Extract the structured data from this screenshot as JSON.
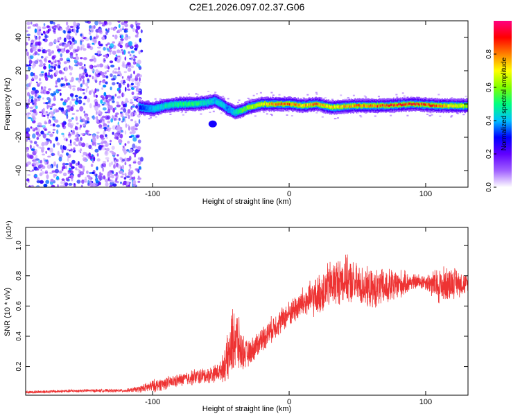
{
  "title": "C2E1.2026.097.02.37.G06",
  "chart_data": [
    {
      "type": "heatmap",
      "xlabel": "Height of straight line (km)",
      "ylabel": "Frequency (Hz)",
      "xlim": [
        -193,
        131
      ],
      "ylim": [
        -50,
        50
      ],
      "xticks": [
        -100,
        0,
        100
      ],
      "yticks": [
        -40,
        -20,
        0,
        20,
        40
      ],
      "grid": false,
      "colorbar": {
        "label": "Normalized spectral amplitude",
        "range": [
          0,
          1
        ],
        "ticks": [
          0.0,
          0.2,
          0.4,
          0.6,
          0.8
        ],
        "colormap": [
          "#ffffff",
          "#a060ff",
          "#6000ff",
          "#0000ff",
          "#00c0ff",
          "#00ff80",
          "#80ff00",
          "#ffff00",
          "#ff8000",
          "#ff0000",
          "#ff0080"
        ]
      },
      "ridge": {
        "x": [
          -110,
          -100,
          -90,
          -80,
          -70,
          -60,
          -55,
          -50,
          -45,
          -40,
          -35,
          -30,
          -20,
          -10,
          0,
          10,
          20,
          30,
          50,
          70,
          90,
          110,
          130
        ],
        "y": [
          -2,
          -3,
          -1,
          0,
          0,
          1,
          2,
          0,
          -3,
          -5,
          -4,
          -2,
          0,
          0,
          0,
          -1,
          0,
          -2,
          -1,
          -1,
          0,
          -1,
          -1
        ],
        "amplitude": [
          0.3,
          0.4,
          0.45,
          0.5,
          0.5,
          0.45,
          0.4,
          0.45,
          0.35,
          0.45,
          0.55,
          0.6,
          0.7,
          0.8,
          0.85,
          0.75,
          0.8,
          0.7,
          0.8,
          0.85,
          0.9,
          0.8,
          0.6
        ]
      },
      "noise_region_x": [
        -193,
        -108
      ]
    },
    {
      "type": "line",
      "xlabel": "Height of straight line (km)",
      "ylabel": "SNR (10 * v/v)",
      "y_multiplier": "(x10⁴)",
      "xlim": [
        -193,
        131
      ],
      "ylim": [
        0.01,
        1.12
      ],
      "xticks": [
        -100,
        0,
        100
      ],
      "yticks": [
        0.2,
        0.4,
        0.6,
        0.8,
        1.0
      ],
      "series": [
        {
          "color": "#ee3333",
          "x": [
            -193,
            -150,
            -120,
            -110,
            -100,
            -90,
            -80,
            -70,
            -60,
            -50,
            -45,
            -40,
            -35,
            -30,
            -20,
            -10,
            0,
            10,
            20,
            25,
            30,
            40,
            50,
            60,
            70,
            80,
            90,
            100,
            110,
            120,
            131
          ],
          "y": [
            0.03,
            0.04,
            0.04,
            0.05,
            0.07,
            0.09,
            0.11,
            0.13,
            0.14,
            0.17,
            0.25,
            0.4,
            0.3,
            0.28,
            0.38,
            0.47,
            0.55,
            0.62,
            0.66,
            0.7,
            0.74,
            0.78,
            0.74,
            0.71,
            0.72,
            0.74,
            0.76,
            0.76,
            0.73,
            0.76,
            0.74
          ],
          "spread": [
            0.01,
            0.01,
            0.01,
            0.02,
            0.04,
            0.04,
            0.04,
            0.05,
            0.05,
            0.06,
            0.15,
            0.25,
            0.12,
            0.08,
            0.08,
            0.08,
            0.08,
            0.1,
            0.12,
            0.14,
            0.15,
            0.15,
            0.13,
            0.12,
            0.12,
            0.1,
            0.05,
            0.05,
            0.12,
            0.1,
            0.06
          ]
        }
      ]
    }
  ]
}
